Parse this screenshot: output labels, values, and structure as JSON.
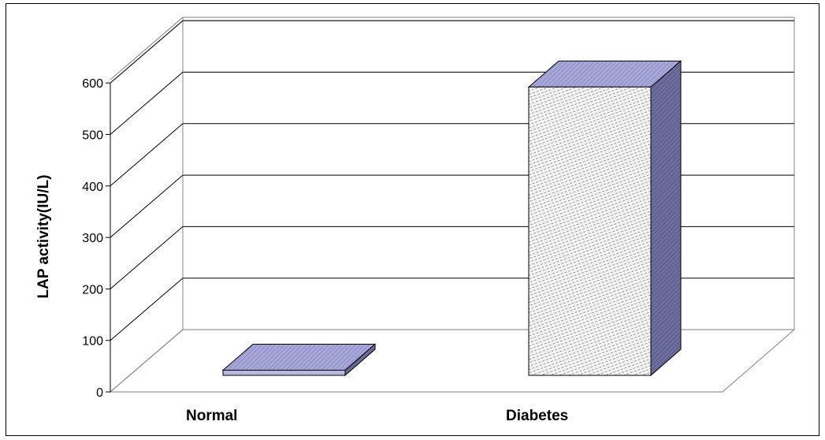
{
  "chart_data": {
    "type": "bar",
    "style": "3d",
    "categories": [
      "Normal",
      "Diabetes"
    ],
    "values": [
      10,
      560
    ],
    "title": "",
    "xlabel": "",
    "ylabel": "LAP activity(IU/L)",
    "ylim": [
      0,
      600
    ],
    "yticks": [
      "0",
      "100",
      "200",
      "300",
      "400",
      "500",
      "600"
    ],
    "grid": true,
    "legend": "none",
    "colors": {
      "bar_top": "#a7a7d9",
      "bar_side": "#6e6e9e",
      "bar_front_normal": "#b8b8e0",
      "bar_front_diabetes": "#f4f4f4",
      "grid": "#000000"
    }
  }
}
